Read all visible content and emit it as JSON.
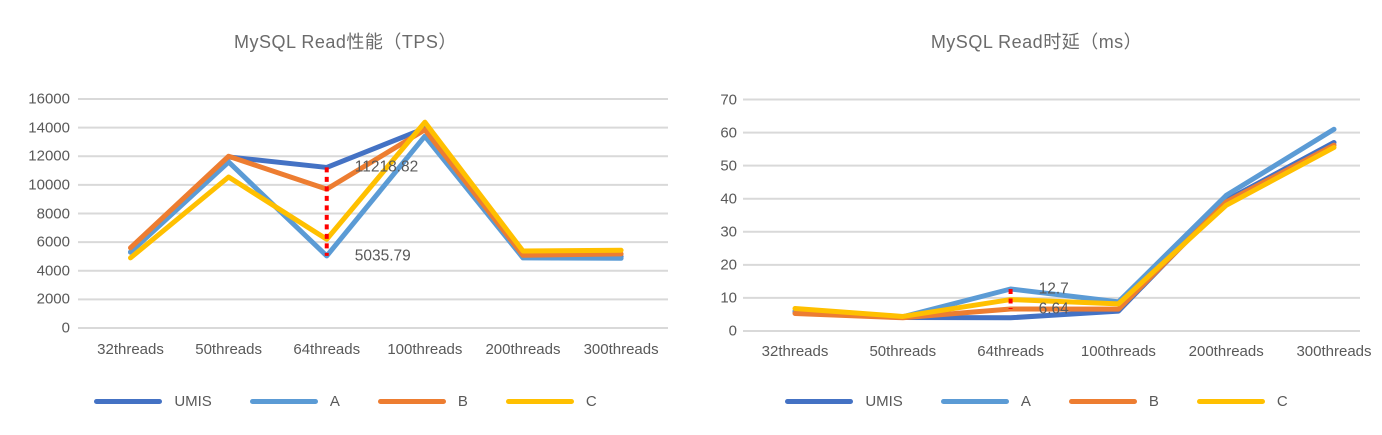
{
  "chart_data": [
    {
      "type": "line",
      "title": "MySQL Read性能（TPS）",
      "xlabel": "",
      "ylabel": "",
      "categories": [
        "32threads",
        "50threads",
        "64threads",
        "100threads",
        "200threads",
        "300threads"
      ],
      "series": [
        {
          "name": "UMIS",
          "color": "#4472C4",
          "values": [
            5300,
            11950,
            11218.82,
            13950,
            5000,
            4990
          ]
        },
        {
          "name": "A",
          "color": "#5B9BD5",
          "values": [
            5300,
            11600,
            5035.79,
            13400,
            4900,
            4870
          ]
        },
        {
          "name": "B",
          "color": "#ED7D31",
          "values": [
            5600,
            12000,
            9700,
            13850,
            5080,
            5180
          ]
        },
        {
          "name": "C",
          "color": "#FFC000",
          "values": [
            4900,
            10550,
            6200,
            14380,
            5380,
            5430
          ]
        }
      ],
      "ylim": [
        0,
        16000
      ],
      "ytick_step": 2000,
      "grid": "horizontal",
      "gridline_color": "#D9D9D9",
      "legend_position": "bottom",
      "annotations": [
        {
          "text": "11218.82",
          "category_index": 2,
          "value": 11218.82
        },
        {
          "text": "5035.79",
          "category_index": 2,
          "value": 5035.79
        }
      ],
      "reference_line": {
        "category_index": 2,
        "from_value": 11218.82,
        "to_value": 5035.79,
        "style": "dashed",
        "color": "#FF0000"
      }
    },
    {
      "type": "line",
      "title": "MySQL Read时延（ms）",
      "xlabel": "",
      "ylabel": "",
      "categories": [
        "32threads",
        "50threads",
        "64threads",
        "100threads",
        "200threads",
        "300threads"
      ],
      "series": [
        {
          "name": "UMIS",
          "color": "#4472C4",
          "values": [
            5.8,
            4.1,
            4.0,
            6.0,
            39.5,
            57.0
          ]
        },
        {
          "name": "A",
          "color": "#5B9BD5",
          "values": [
            6.0,
            4.3,
            12.7,
            8.8,
            41.0,
            61.0
          ]
        },
        {
          "name": "B",
          "color": "#ED7D31",
          "values": [
            5.3,
            4.0,
            6.64,
            6.6,
            39.0,
            56.2
          ]
        },
        {
          "name": "C",
          "color": "#FFC000",
          "values": [
            6.8,
            4.4,
            9.5,
            8.2,
            38.0,
            55.5
          ]
        }
      ],
      "ylim": [
        0,
        70
      ],
      "ytick_step": 10,
      "grid": "horizontal",
      "gridline_color": "#D9D9D9",
      "legend_position": "bottom",
      "annotations": [
        {
          "text": "12.7",
          "category_index": 2,
          "value": 12.7
        },
        {
          "text": "6.64",
          "category_index": 2,
          "value": 6.64
        }
      ],
      "reference_line": {
        "category_index": 2,
        "from_value": 12.7,
        "to_value": 6.64,
        "style": "dashed",
        "color": "#FF0000"
      }
    }
  ]
}
